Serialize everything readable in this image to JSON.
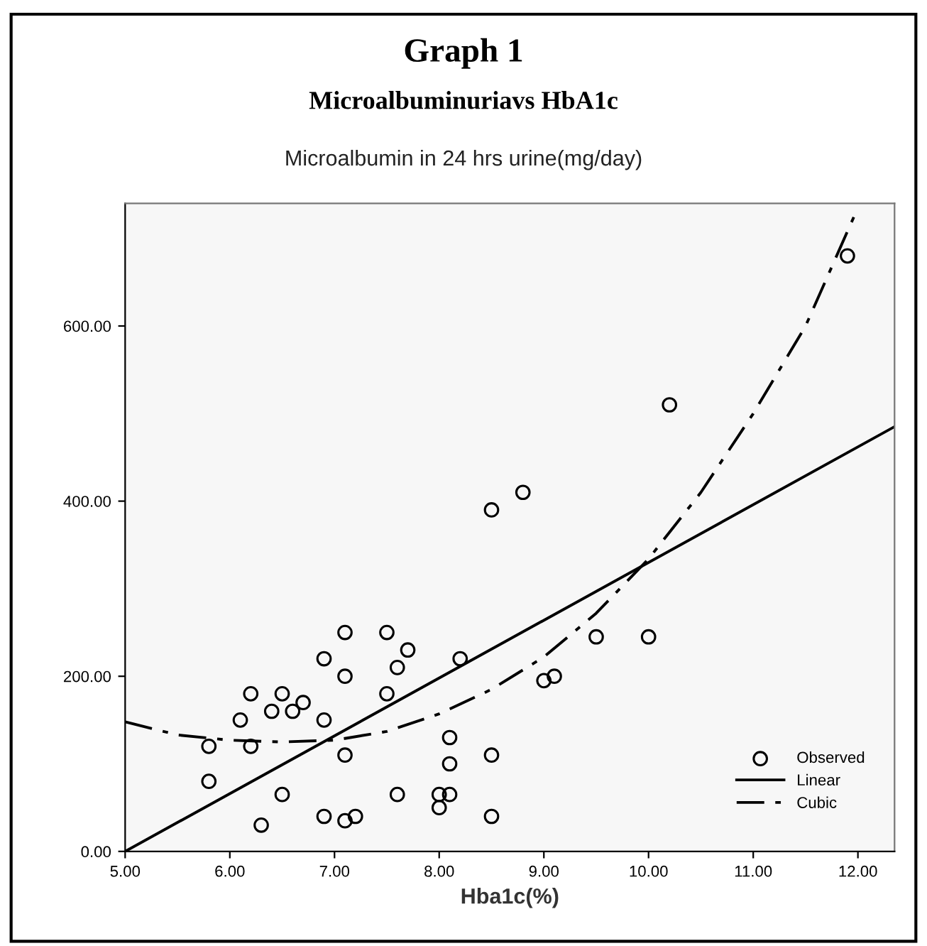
{
  "chart_data": {
    "type": "scatter",
    "title": "Graph 1",
    "subtitle": "Microalbuminuriavs HbA1c",
    "ylabel": "Microalbumin in 24 hrs urine(mg/day)",
    "xlabel": "Hba1c(%)",
    "xlim": [
      5,
      12.35
    ],
    "ylim": [
      0,
      740
    ],
    "xticks": [
      {
        "value": 5,
        "label": "5.00"
      },
      {
        "value": 6,
        "label": "6.00"
      },
      {
        "value": 7,
        "label": "7.00"
      },
      {
        "value": 8,
        "label": "8.00"
      },
      {
        "value": 9,
        "label": "9.00"
      },
      {
        "value": 10,
        "label": "10.00"
      },
      {
        "value": 11,
        "label": "11.00"
      },
      {
        "value": 12,
        "label": "12.00"
      }
    ],
    "yticks": [
      {
        "value": 0,
        "label": "0.00"
      },
      {
        "value": 200,
        "label": "200.00"
      },
      {
        "value": 400,
        "label": "400.00"
      },
      {
        "value": 600,
        "label": "600.00"
      }
    ],
    "grid": false,
    "legend": "bottom right",
    "series": [
      {
        "name": "Observed",
        "marker": "circle",
        "color": "#000000",
        "x": [
          5.8,
          5.8,
          6.1,
          6.2,
          6.2,
          6.3,
          6.4,
          6.5,
          6.5,
          6.6,
          6.7,
          6.9,
          6.9,
          6.9,
          7.1,
          7.1,
          7.1,
          7.1,
          7.2,
          7.5,
          7.5,
          7.6,
          7.6,
          7.7,
          8.0,
          8.0,
          8.1,
          8.1,
          8.1,
          8.2,
          8.5,
          8.5,
          8.5,
          8.8,
          9.0,
          9.1,
          9.5,
          10.0,
          10.2,
          11.9
        ],
        "values": [
          120,
          80,
          150,
          180,
          120,
          30,
          160,
          180,
          65,
          160,
          170,
          220,
          150,
          40,
          250,
          200,
          110,
          35,
          40,
          250,
          180,
          210,
          65,
          230,
          50,
          65,
          130,
          100,
          65,
          220,
          390,
          110,
          40,
          410,
          195,
          200,
          245,
          245,
          510,
          680
        ]
      },
      {
        "name": "Linear",
        "type": "line",
        "line_style": "solid",
        "color": "#000000",
        "x": [
          5,
          12.35
        ],
        "values": [
          0,
          485
        ]
      },
      {
        "name": "Cubic",
        "type": "line",
        "line_style": "dashed",
        "color": "#000000",
        "x": [
          5,
          5.5,
          6,
          6.5,
          7,
          7.5,
          8,
          8.5,
          9,
          9.5,
          10,
          10.5,
          11,
          11.5,
          12
        ],
        "values": [
          148,
          133,
          127,
          125,
          127,
          137,
          157,
          185,
          222,
          272,
          334,
          410,
          500,
          600,
          735
        ]
      }
    ]
  }
}
